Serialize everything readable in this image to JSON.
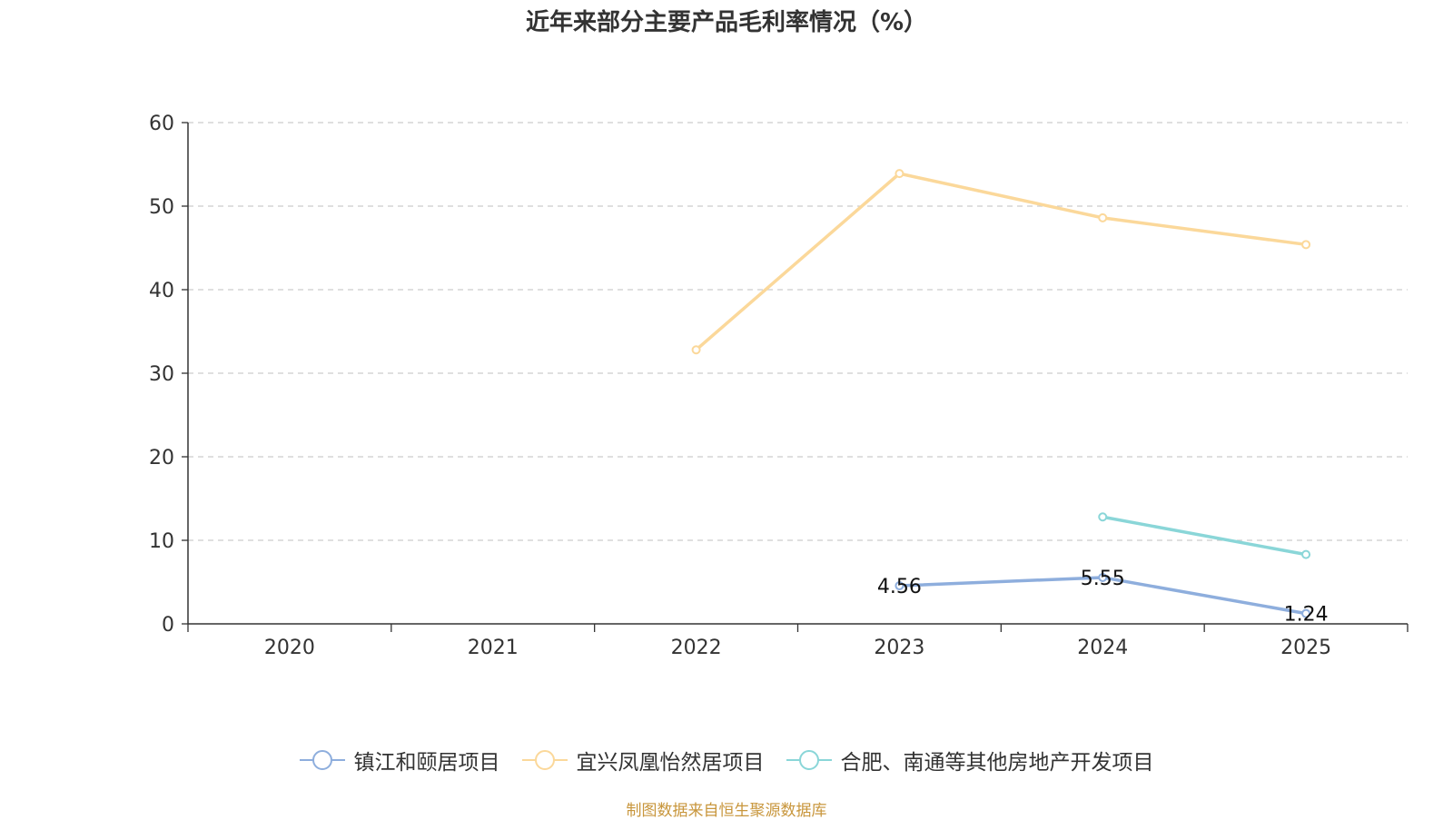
{
  "chart_data": {
    "type": "line",
    "title": "近年来部分主要产品毛利率情况（%）",
    "categories": [
      "2020",
      "2021",
      "2022",
      "2023",
      "2024",
      "2025"
    ],
    "ylim": [
      0,
      60
    ],
    "yticks": [
      0,
      10,
      20,
      30,
      40,
      50,
      60
    ],
    "grid": true,
    "legend_position": "bottom",
    "series": [
      {
        "name": "镇江和颐居项目",
        "color": "#8eaedd",
        "values": [
          null,
          null,
          null,
          4.56,
          5.55,
          1.24
        ],
        "labels": [
          null,
          null,
          null,
          "4.56",
          "5.55",
          "1.24"
        ]
      },
      {
        "name": "宜兴凤凰怡然居项目",
        "color": "#fbd89a",
        "values": [
          null,
          null,
          32.8,
          53.9,
          48.6,
          45.4
        ],
        "labels": [
          null,
          null,
          null,
          null,
          null,
          null
        ]
      },
      {
        "name": "合肥、南通等其他房地产开发项目",
        "color": "#8ad6d8",
        "values": [
          null,
          null,
          null,
          null,
          12.8,
          8.3
        ],
        "labels": [
          null,
          null,
          null,
          null,
          null,
          null
        ]
      }
    ]
  },
  "source_text": "制图数据来自恒生聚源数据库"
}
